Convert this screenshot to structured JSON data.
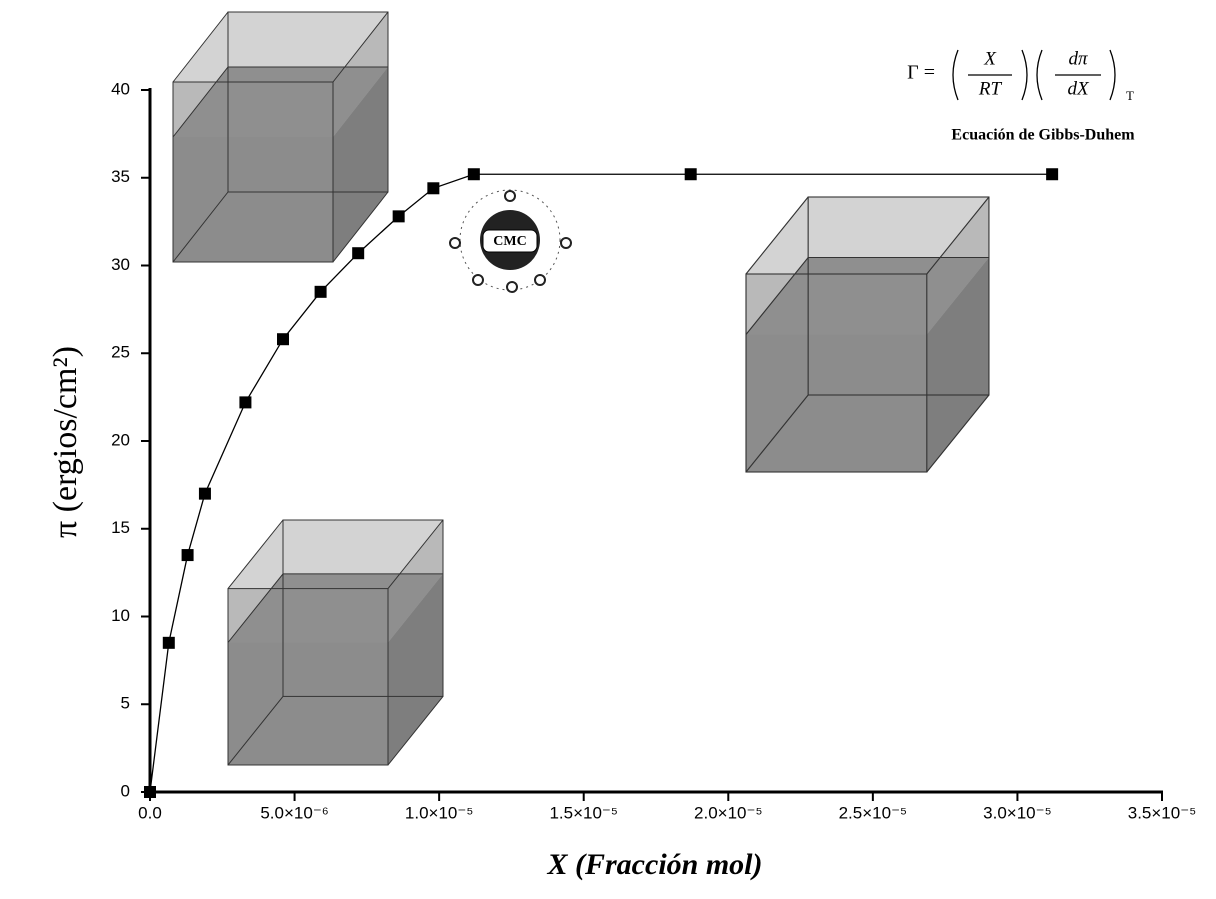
{
  "chart_data": {
    "type": "line",
    "x_label": "X (Fracción mol)",
    "y_label": "π (ergios/cm²)",
    "x": [
      0,
      6.5e-07,
      1.3e-06,
      1.9e-06,
      3.3e-06,
      4.6e-06,
      5.9e-06,
      7.2e-06,
      8.6e-06,
      9.8e-06,
      1.12e-05,
      1.87e-05,
      3.12e-05
    ],
    "values": [
      0,
      8.5,
      13.5,
      17,
      22.2,
      25.8,
      28.5,
      30.7,
      32.8,
      34.4,
      35.2,
      35.2,
      35.2
    ],
    "color": "#000000",
    "xlim": [
      0,
      3.5e-05
    ],
    "xticks": [
      {
        "value": 0,
        "label": "0.0"
      },
      {
        "value": 5e-06,
        "label": "5.0×10⁻⁶"
      },
      {
        "value": 1e-05,
        "label": "1.0×10⁻⁵"
      },
      {
        "value": 1.5e-05,
        "label": "1.5×10⁻⁵"
      },
      {
        "value": 2e-05,
        "label": "2.0×10⁻⁵"
      },
      {
        "value": 2.5e-05,
        "label": "2.5×10⁻⁵"
      },
      {
        "value": 3e-05,
        "label": "3.0×10⁻⁵"
      },
      {
        "value": 3.5e-05,
        "label": "3.5×10⁻⁵"
      }
    ],
    "ylim": [
      0,
      40
    ],
    "yticks": [
      0,
      5,
      10,
      15,
      20,
      25,
      30,
      35,
      40
    ],
    "grid": false,
    "annotation": "CMC",
    "equation": {
      "lhs": "Γ =",
      "num1": "X",
      "den1": "RT",
      "num2": "dπ",
      "den2": "dX",
      "subscript": "T"
    },
    "equation_caption": "Ecuación de Gibbs-Duhem"
  }
}
